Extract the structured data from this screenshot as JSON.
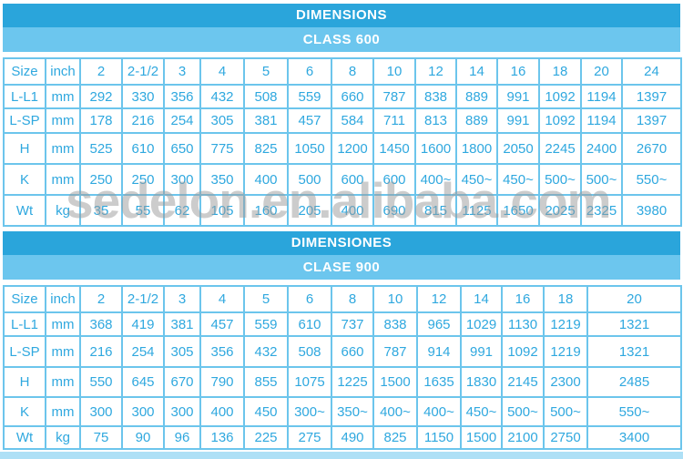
{
  "colors": {
    "header_dark": "#2aa5db",
    "header_light": "#6cc6ee",
    "cell_text": "#2fa8df",
    "grid_border": "#6cc5ec",
    "bottom_strip": "#aee0f6",
    "watermark_gray": "#9b9b9b"
  },
  "watermark": {
    "text": "sedelon.en.alibaba.com"
  },
  "sections": [
    {
      "title": "DIMENSIONS",
      "subtitle": "CLASS 600",
      "table": {
        "header": [
          "Size",
          "inch",
          "2",
          "2-1/2",
          "3",
          "4",
          "5",
          "6",
          "8",
          "10",
          "12",
          "14",
          "16",
          "18",
          "20",
          "24"
        ],
        "rows": [
          {
            "label": "L-L1",
            "unit": "mm",
            "values": [
              "292",
              "330",
              "356",
              "432",
              "508",
              "559",
              "660",
              "787",
              "838",
              "889",
              "991",
              "1092",
              "1194",
              "1397"
            ]
          },
          {
            "label": "L-SP",
            "unit": "mm",
            "values": [
              "178",
              "216",
              "254",
              "305",
              "381",
              "457",
              "584",
              "711",
              "813",
              "889",
              "991",
              "1092",
              "1194",
              "1397"
            ]
          },
          {
            "label": "H",
            "unit": "mm",
            "values": [
              "525",
              "610",
              "650",
              "775",
              "825",
              "1050",
              "1200",
              "1450",
              "1600",
              "1800",
              "2050",
              "2245",
              "2400",
              "2670"
            ]
          },
          {
            "label": "K",
            "unit": "mm",
            "values": [
              "250",
              "250",
              "300",
              "350",
              "400",
              "500",
              "600",
              "600",
              "400~",
              "450~",
              "450~",
              "500~",
              "500~",
              "550~"
            ]
          },
          {
            "label": "Wt",
            "unit": "kg",
            "values": [
              "35",
              "55",
              "62",
              "105",
              "160",
              "205",
              "400",
              "690",
              "815",
              "1125",
              "1650",
              "2025",
              "2325",
              "3980"
            ]
          }
        ]
      }
    },
    {
      "title": "DIMENSIONES",
      "subtitle": "CLASE 900",
      "table": {
        "header": [
          "Size",
          "inch",
          "2",
          "2-1/2",
          "3",
          "4",
          "5",
          "6",
          "8",
          "10",
          "12",
          "14",
          "16",
          "18",
          "20"
        ],
        "rows": [
          {
            "label": "L-L1",
            "unit": "mm",
            "values": [
              "368",
              "419",
              "381",
              "457",
              "559",
              "610",
              "737",
              "838",
              "965",
              "1029",
              "1130",
              "1219",
              "1321"
            ]
          },
          {
            "label": "L-SP",
            "unit": "mm",
            "values": [
              "216",
              "254",
              "305",
              "356",
              "432",
              "508",
              "660",
              "787",
              "914",
              "991",
              "1092",
              "1219",
              "1321"
            ]
          },
          {
            "label": "H",
            "unit": "mm",
            "values": [
              "550",
              "645",
              "670",
              "790",
              "855",
              "1075",
              "1225",
              "1500",
              "1635",
              "1830",
              "2145",
              "2300",
              "2485"
            ]
          },
          {
            "label": "K",
            "unit": "mm",
            "values": [
              "300",
              "300",
              "300",
              "400",
              "450",
              "300~",
              "350~",
              "400~",
              "400~",
              "450~",
              "500~",
              "500~",
              "550~"
            ]
          },
          {
            "label": "Wt",
            "unit": "kg",
            "values": [
              "75",
              "90",
              "96",
              "136",
              "225",
              "275",
              "490",
              "825",
              "1150",
              "1500",
              "2100",
              "2750",
              "3400"
            ]
          }
        ]
      }
    }
  ]
}
